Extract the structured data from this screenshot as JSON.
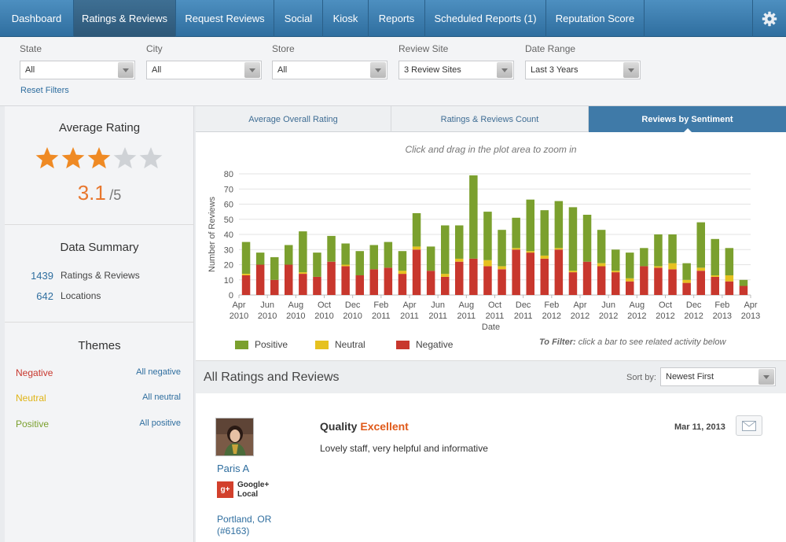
{
  "nav": {
    "tabs": [
      {
        "label": "Dashboard"
      },
      {
        "label": "Ratings & Reviews",
        "active": true
      },
      {
        "label": "Request Reviews"
      },
      {
        "label": "Social"
      },
      {
        "label": "Kiosk"
      },
      {
        "label": "Reports"
      },
      {
        "label": "Scheduled Reports (1)"
      },
      {
        "label": "Reputation Score"
      }
    ],
    "settings_icon": "gear-icon"
  },
  "filters": {
    "state": {
      "label": "State",
      "value": "All"
    },
    "city": {
      "label": "City",
      "value": "All"
    },
    "store": {
      "label": "Store",
      "value": "All"
    },
    "review_site": {
      "label": "Review Site",
      "value": "3 Review Sites"
    },
    "date_range": {
      "label": "Date Range",
      "value": "Last 3 Years"
    },
    "reset_label": "Reset Filters"
  },
  "sidebar": {
    "avg_rating_title": "Average Rating",
    "rating_value": "3.1",
    "rating_max": "/5",
    "stars_filled": 3,
    "stars_total": 5,
    "data_summary_title": "Data Summary",
    "summary": [
      {
        "count": "1439",
        "label": "Ratings & Reviews"
      },
      {
        "count": "642",
        "label": "Locations"
      }
    ],
    "themes_title": "Themes",
    "themes": [
      {
        "name": "Negative",
        "link": "All negative",
        "color": "#c8372d"
      },
      {
        "name": "Neutral",
        "link": "All neutral",
        "color": "#e0b416"
      },
      {
        "name": "Positive",
        "link": "All positive",
        "color": "#7ba02e"
      }
    ]
  },
  "chart_tabs": [
    {
      "label": "Average Overall Rating"
    },
    {
      "label": "Ratings & Reviews Count"
    },
    {
      "label": "Reviews by Sentiment",
      "active": true
    }
  ],
  "chart_hint": "Click and drag in the plot area to zoom in",
  "chart_data": {
    "type": "bar",
    "stacked": true,
    "ylabel": "Number of Reviews",
    "xlabel": "Date",
    "ylim": [
      0,
      80
    ],
    "yticks": [
      0,
      10,
      20,
      30,
      40,
      50,
      60,
      70,
      80
    ],
    "xtick_labels": [
      {
        "month": "Apr",
        "year": "2010"
      },
      {
        "month": "Jun",
        "year": "2010"
      },
      {
        "month": "Aug",
        "year": "2010"
      },
      {
        "month": "Oct",
        "year": "2010"
      },
      {
        "month": "Dec",
        "year": "2010"
      },
      {
        "month": "Feb",
        "year": "2011"
      },
      {
        "month": "Apr",
        "year": "2011"
      },
      {
        "month": "Jun",
        "year": "2011"
      },
      {
        "month": "Aug",
        "year": "2011"
      },
      {
        "month": "Oct",
        "year": "2011"
      },
      {
        "month": "Dec",
        "year": "2011"
      },
      {
        "month": "Feb",
        "year": "2012"
      },
      {
        "month": "Apr",
        "year": "2012"
      },
      {
        "month": "Jun",
        "year": "2012"
      },
      {
        "month": "Aug",
        "year": "2012"
      },
      {
        "month": "Oct",
        "year": "2012"
      },
      {
        "month": "Dec",
        "year": "2012"
      },
      {
        "month": "Feb",
        "year": "2013"
      },
      {
        "month": "Apr",
        "year": "2013"
      }
    ],
    "categories": [
      "Apr 2010",
      "May 2010",
      "Jun 2010",
      "Jul 2010",
      "Aug 2010",
      "Sep 2010",
      "Oct 2010",
      "Nov 2010",
      "Dec 2010",
      "Jan 2011",
      "Feb 2011",
      "Mar 2011",
      "Apr 2011",
      "May 2011",
      "Jun 2011",
      "Jul 2011",
      "Aug 2011",
      "Sep 2011",
      "Oct 2011",
      "Nov 2011",
      "Dec 2011",
      "Jan 2012",
      "Feb 2012",
      "Mar 2012",
      "Apr 2012",
      "May 2012",
      "Jun 2012",
      "Jul 2012",
      "Aug 2012",
      "Sep 2012",
      "Oct 2012",
      "Nov 2012",
      "Dec 2012",
      "Jan 2013",
      "Feb 2013",
      "Mar 2013"
    ],
    "series": [
      {
        "name": "Negative",
        "color": "#c8372d",
        "values": [
          13,
          20,
          10,
          20,
          14,
          12,
          22,
          19,
          13,
          17,
          18,
          14,
          30,
          16,
          12,
          22,
          24,
          19,
          17,
          30,
          28,
          24,
          30,
          15,
          22,
          19,
          15,
          9,
          19,
          18,
          17,
          8,
          16,
          12,
          9,
          6
        ]
      },
      {
        "name": "Neutral",
        "color": "#e6c11f",
        "values": [
          1,
          0,
          0,
          0,
          1,
          0,
          0,
          1,
          0,
          0,
          0,
          2,
          2,
          0,
          2,
          2,
          0,
          4,
          2,
          1,
          1,
          2,
          1,
          1,
          0,
          2,
          1,
          2,
          0,
          1,
          4,
          2,
          2,
          1,
          4,
          0
        ]
      },
      {
        "name": "Positive",
        "color": "#7ba02e",
        "values": [
          21,
          8,
          15,
          13,
          27,
          16,
          17,
          14,
          16,
          16,
          17,
          13,
          22,
          16,
          32,
          22,
          55,
          32,
          24,
          20,
          34,
          30,
          31,
          42,
          31,
          22,
          14,
          17,
          12,
          21,
          19,
          11,
          30,
          24,
          18,
          4
        ]
      }
    ],
    "legend": [
      {
        "name": "Positive",
        "color": "#7ba02e"
      },
      {
        "name": "Neutral",
        "color": "#e6c11f"
      },
      {
        "name": "Negative",
        "color": "#c8372d"
      }
    ],
    "legend_position": "bottom-left"
  },
  "chart_filter_hint": {
    "bold": "To Filter:",
    "text": " click a bar to see related activity below"
  },
  "reviews_list": {
    "title": "All Ratings and Reviews",
    "sort_label": "Sort by:",
    "sort_value": "Newest First",
    "items": [
      {
        "user": "Paris A",
        "source": "Google+ Local",
        "source_icon": "google-plus-icon",
        "location": "Portland, OR",
        "store_id": "(#6163)",
        "quality_label": "Quality",
        "quality_value": "Excellent",
        "text": "Lovely staff, very helpful and informative",
        "date": "Mar 11, 2013"
      }
    ]
  }
}
